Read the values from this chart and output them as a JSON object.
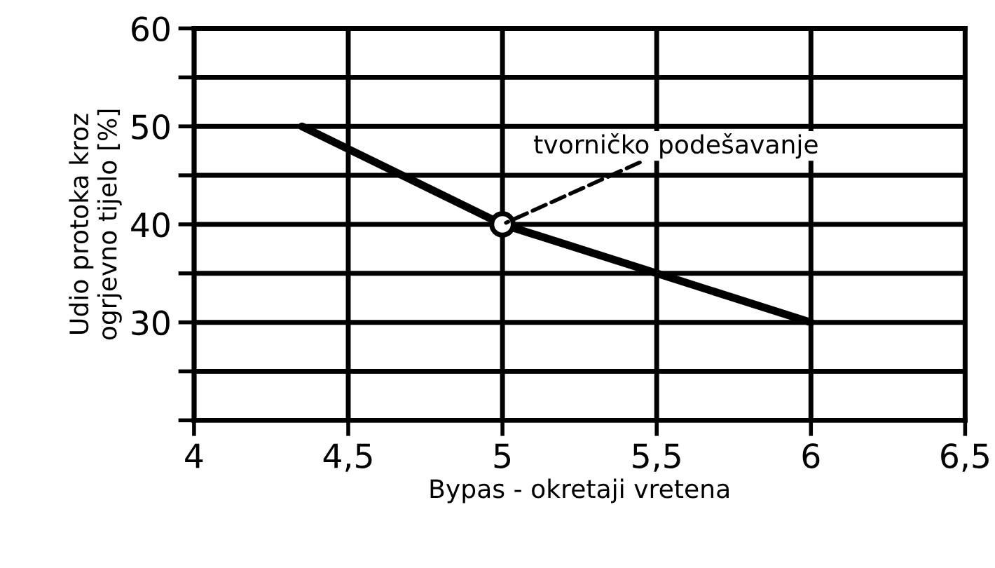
{
  "chart_data": {
    "type": "line",
    "xlabel": "Bypas - okretaji vretena",
    "ylabel": "Udio protoka kroz\nogrjevno tijelo [%]",
    "x": [
      4.35,
      5,
      5.5,
      6
    ],
    "series": [
      {
        "color": "#000000",
        "values": [
          50,
          40,
          35,
          30
        ]
      }
    ],
    "xlim": [
      4,
      6.5
    ],
    "xticks": [
      4,
      {
        "value": 4.5,
        "label": "4,5"
      },
      5,
      {
        "value": 5.5,
        "label": "5,5"
      },
      6,
      {
        "value": 6.5,
        "label": "6,5"
      }
    ],
    "ylim": [
      20,
      60
    ],
    "yticks": [
      {
        "value": 20,
        "label": null
      },
      {
        "value": 25,
        "label": null
      },
      30,
      {
        "value": 35,
        "label": null
      },
      40,
      {
        "value": 45,
        "label": null
      },
      50,
      {
        "value": 55,
        "label": null
      },
      60
    ],
    "grid": true,
    "marker": "none",
    "line_style": "solid",
    "annotations": [
      {
        "text": "tvorničko podešavanje",
        "x": 5,
        "y": 40
      }
    ]
  }
}
